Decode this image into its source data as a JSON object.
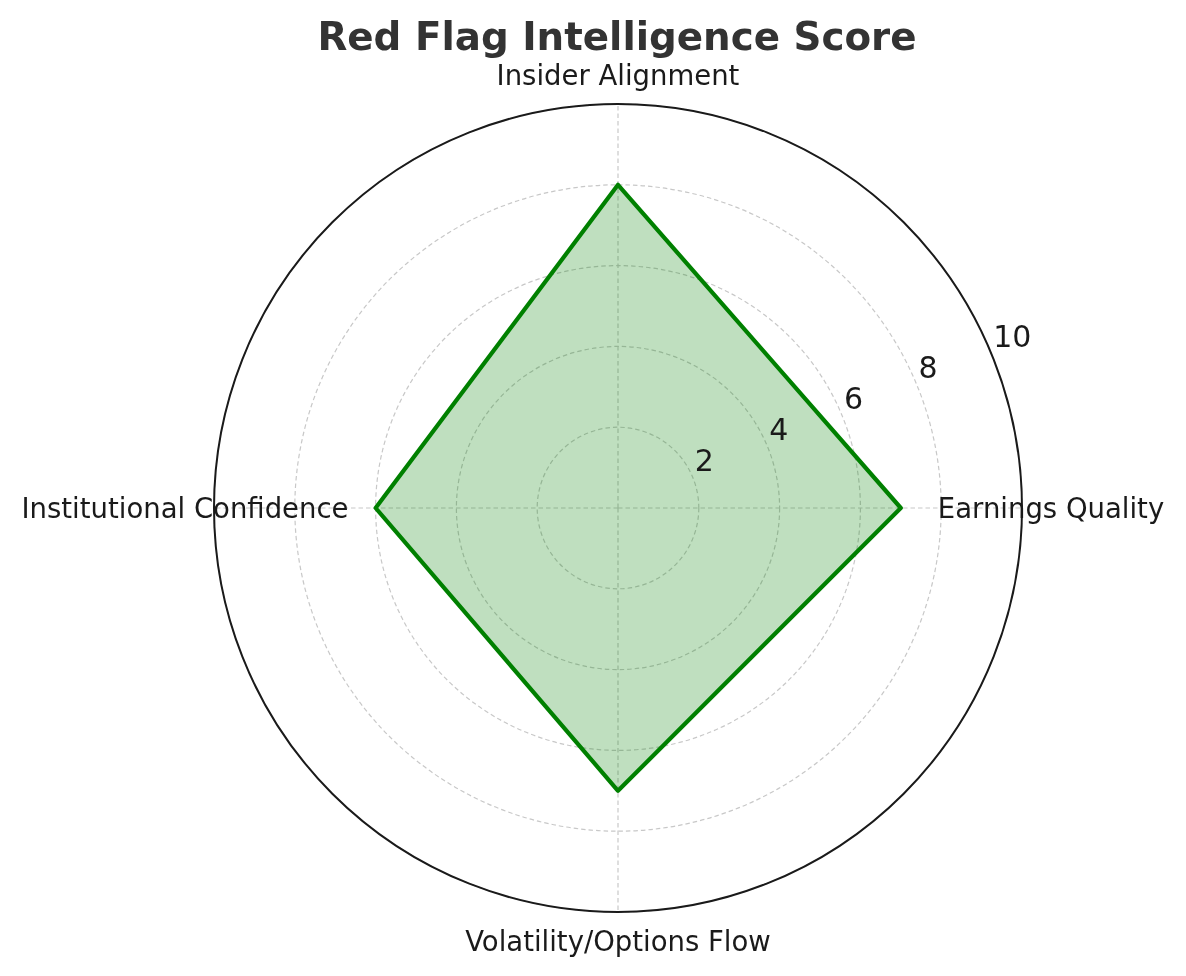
{
  "chart_data": {
    "type": "radar",
    "title": "Red Flag Intelligence Score",
    "categories": [
      "Insider Alignment",
      "Earnings Quality",
      "Volatility/Options Flow",
      "Institutional Confidence"
    ],
    "series": [
      {
        "color": "#008000",
        "values": [
          8,
          7,
          7,
          6
        ]
      }
    ],
    "ylim": [
      0,
      10
    ],
    "yticks": [
      2,
      4,
      6,
      8,
      10
    ],
    "grid": true
  }
}
